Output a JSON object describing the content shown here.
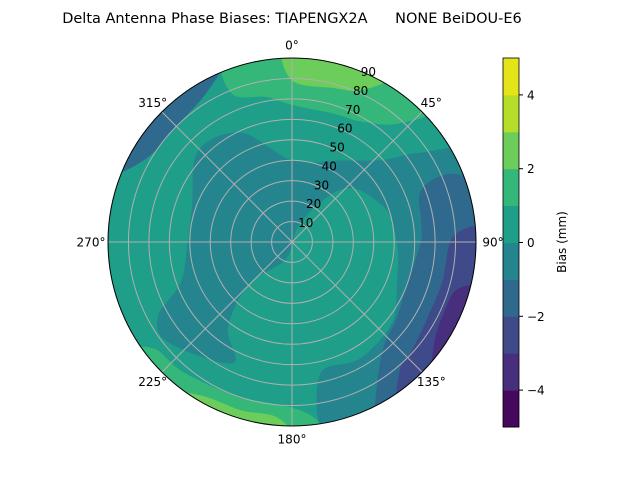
{
  "chart_data": {
    "type": "heatmap",
    "subtype": "polar-filled-contour",
    "title": "Delta Antenna Phase Biases: TIAPENGX2A      NONE BeiDOU-E6",
    "angular_axis": {
      "direction": "clockwise",
      "zero_location": "north",
      "tick_labels": [
        "0°",
        "45°",
        "90°",
        "135°",
        "180°",
        "225°",
        "270°",
        "315°"
      ]
    },
    "radial_axis": {
      "range": [
        0,
        90
      ],
      "tick_labels": [
        "10",
        "20",
        "30",
        "40",
        "50",
        "60",
        "70",
        "80",
        "90"
      ]
    },
    "grid": true,
    "colorbar": {
      "label": "Bias (mm)",
      "levels": [
        -5,
        -4,
        -3,
        -2,
        -1,
        0,
        1,
        2,
        3,
        4,
        5
      ],
      "tick_labels": [
        "−4",
        "−2",
        "0",
        "2",
        "4"
      ],
      "ticks": [
        -4,
        -2,
        0,
        2,
        4
      ],
      "colormap": "viridis",
      "colors": [
        "#46085c",
        "#472f7d",
        "#3e4a89",
        "#30698e",
        "#25858e",
        "#1f9e89",
        "#35b779",
        "#6ccd5a",
        "#b5de2b",
        "#e5e419"
      ]
    },
    "background_band": [
      0,
      1
    ],
    "regions": [
      {
        "band": [
          -1,
          0
        ],
        "points": [
          [
            0,
            40
          ],
          [
            335,
            59
          ],
          [
            314,
            64
          ],
          [
            290,
            52
          ],
          [
            270,
            51
          ],
          [
            250,
            58
          ],
          [
            241,
            75
          ],
          [
            231,
            78
          ],
          [
            206,
            66
          ],
          [
            217,
            52
          ],
          [
            226,
            29
          ],
          [
            200,
            9
          ],
          [
            23,
            10
          ],
          [
            40,
            31
          ],
          [
            51,
            41
          ],
          [
            69,
            48
          ],
          [
            79,
            50
          ],
          [
            95,
            52
          ],
          [
            111,
            55
          ],
          [
            129,
            63
          ],
          [
            150,
            66
          ],
          [
            168,
            66
          ],
          [
            170,
            90
          ],
          [
            150,
            90
          ],
          [
            120,
            90
          ],
          [
            90,
            90
          ],
          [
            64,
            90
          ],
          [
            55,
            76
          ],
          [
            48,
            60
          ],
          [
            30,
            46
          ]
        ]
      },
      {
        "band": [
          -2,
          -1
        ],
        "points": [
          [
            66,
            77
          ],
          [
            69,
            67
          ],
          [
            80,
            64
          ],
          [
            90,
            63
          ],
          [
            109,
            60
          ],
          [
            125,
            63
          ],
          [
            140,
            69
          ],
          [
            152,
            87
          ],
          [
            154,
            90
          ],
          [
            135,
            90
          ],
          [
            110,
            90
          ],
          [
            90,
            90
          ],
          [
            75,
            90
          ],
          [
            68,
            88
          ]
        ]
      },
      {
        "band": [
          -2,
          -1
        ],
        "points": [
          [
            290,
            90
          ],
          [
            300,
            82
          ],
          [
            315,
            80
          ],
          [
            330,
            84
          ],
          [
            340,
            90
          ],
          [
            320,
            90
          ],
          [
            305,
            90
          ]
        ]
      },
      {
        "band": [
          -3,
          -2
        ],
        "points": [
          [
            86,
            90
          ],
          [
            88,
            79
          ],
          [
            105,
            76
          ],
          [
            120,
            76
          ],
          [
            132,
            79
          ],
          [
            140,
            82
          ],
          [
            146,
            90
          ],
          [
            120,
            90
          ],
          [
            100,
            90
          ]
        ]
      },
      {
        "band": [
          -4,
          -3
        ],
        "points": [
          [
            104,
            90
          ],
          [
            106,
            84
          ],
          [
            115,
            82
          ],
          [
            125,
            85
          ],
          [
            134,
            90
          ],
          [
            120,
            90
          ]
        ]
      },
      {
        "band": [
          1,
          2
        ],
        "points": [
          [
            340,
            90
          ],
          [
            338,
            78
          ],
          [
            350,
            72
          ],
          [
            0,
            67
          ],
          [
            18,
            66
          ],
          [
            30,
            68
          ],
          [
            42,
            78
          ],
          [
            46,
            90
          ],
          [
            20,
            90
          ],
          [
            0,
            90
          ]
        ]
      },
      {
        "band": [
          2,
          3
        ],
        "points": [
          [
            358,
            90
          ],
          [
            0,
            79
          ],
          [
            15,
            78
          ],
          [
            25,
            82
          ],
          [
            31,
            90
          ],
          [
            15,
            90
          ]
        ]
      },
      {
        "band": [
          1,
          2
        ],
        "points": [
          [
            236,
            90
          ],
          [
            232,
            85
          ],
          [
            220,
            83
          ],
          [
            200,
            80
          ],
          [
            180,
            81
          ],
          [
            172,
            88
          ],
          [
            172,
            90
          ],
          [
            200,
            90
          ],
          [
            220,
            90
          ]
        ]
      },
      {
        "band": [
          2,
          3
        ],
        "points": [
          [
            220,
            90
          ],
          [
            210,
            87
          ],
          [
            197,
            86
          ],
          [
            185,
            86
          ],
          [
            180,
            90
          ],
          [
            200,
            90
          ]
        ]
      }
    ]
  }
}
